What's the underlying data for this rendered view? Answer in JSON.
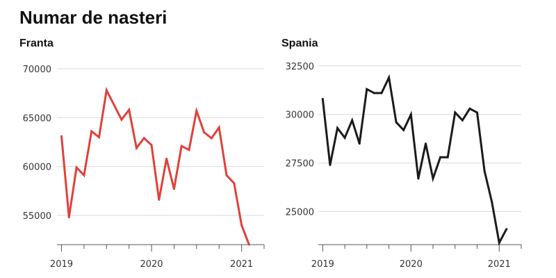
{
  "title": "Numar de nasteri",
  "chart_data": [
    {
      "type": "line",
      "title": "Franta",
      "color": "#e0403a",
      "ylim": [
        52000,
        70500
      ],
      "yticks": [
        55000,
        60000,
        65000,
        70000
      ],
      "yticks_labels": [
        "55000",
        "60000",
        "65000",
        "70000"
      ],
      "xlim": [
        2018.95,
        2021.25
      ],
      "xticks": [
        2019,
        2020,
        2021
      ],
      "xticks_labels": [
        "2019",
        "2020",
        "2021"
      ],
      "grid": true,
      "series": [
        {
          "x": [
            "2019-01",
            "2019-02",
            "2019-03",
            "2019-04",
            "2019-05",
            "2019-06",
            "2019-07",
            "2019-08",
            "2019-09",
            "2019-10",
            "2019-11",
            "2019-12",
            "2020-01",
            "2020-02",
            "2020-03",
            "2020-04",
            "2020-05",
            "2020-06",
            "2020-07",
            "2020-08",
            "2020-09",
            "2020-10",
            "2020-11",
            "2020-12",
            "2021-01",
            "2021-02",
            "2021-03"
          ],
          "values": [
            63100,
            54800,
            59900,
            59100,
            63600,
            63000,
            67800,
            66300,
            64800,
            65800,
            61900,
            62900,
            62200,
            56600,
            60800,
            57700,
            62100,
            61700,
            65700,
            63500,
            62900,
            64000,
            59100,
            58300,
            54000,
            52000,
            null
          ]
        }
      ]
    },
    {
      "type": "line",
      "title": "Spania",
      "color": "#1a1a1a",
      "ylim": [
        23300,
        32600
      ],
      "yticks": [
        25000,
        27500,
        30000,
        32500
      ],
      "yticks_labels": [
        "25000",
        "27500",
        "30000",
        "32500"
      ],
      "xlim": [
        2018.95,
        2021.25
      ],
      "xticks": [
        2019,
        2020,
        2021
      ],
      "xticks_labels": [
        "2019",
        "2020",
        "2021"
      ],
      "grid": true,
      "series": [
        {
          "x": [
            "2019-01",
            "2019-02",
            "2019-03",
            "2019-04",
            "2019-05",
            "2019-06",
            "2019-07",
            "2019-08",
            "2019-09",
            "2019-10",
            "2019-11",
            "2019-12",
            "2020-01",
            "2020-02",
            "2020-03",
            "2020-04",
            "2020-05",
            "2020-06",
            "2020-07",
            "2020-08",
            "2020-09",
            "2020-10",
            "2020-11",
            "2020-12",
            "2021-01",
            "2021-02"
          ],
          "values": [
            30800,
            27400,
            29300,
            28800,
            29700,
            28500,
            31300,
            31100,
            31100,
            31900,
            29600,
            29200,
            30000,
            26700,
            28500,
            26700,
            27800,
            27800,
            30100,
            29700,
            30300,
            30100,
            27100,
            25500,
            23400,
            24100
          ]
        }
      ]
    }
  ]
}
